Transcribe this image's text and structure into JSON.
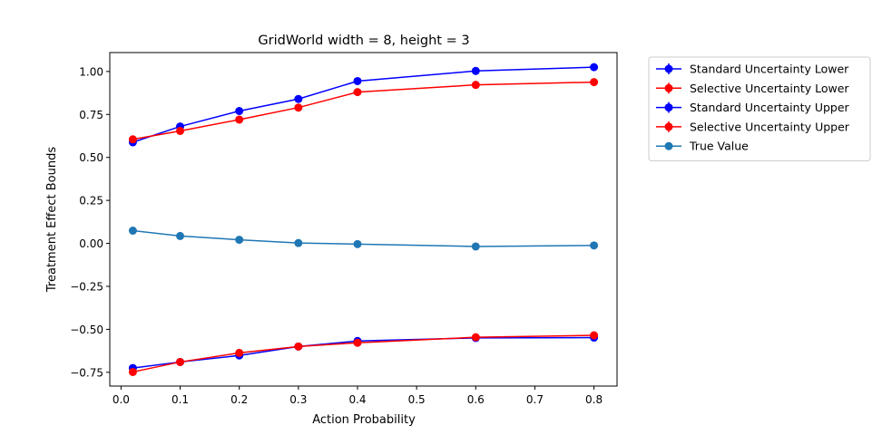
{
  "chart_data": {
    "type": "line",
    "title": "GridWorld width = 8, height = 3",
    "xlabel": "Action Probability",
    "ylabel": "Treatment Effect Bounds",
    "xlim": [
      -0.019,
      0.839
    ],
    "ylim": [
      -0.83,
      1.11
    ],
    "xticks": [
      0.0,
      0.1,
      0.2,
      0.3,
      0.4,
      0.5,
      0.6,
      0.7,
      0.8
    ],
    "xtick_labels": [
      "0.0",
      "0.1",
      "0.2",
      "0.3",
      "0.4",
      "0.5",
      "0.6",
      "0.7",
      "0.8"
    ],
    "yticks": [
      -0.75,
      -0.5,
      -0.25,
      0.0,
      0.25,
      0.5,
      0.75,
      1.0
    ],
    "ytick_labels": [
      "−0.75",
      "−0.50",
      "−0.25",
      "0.00",
      "0.25",
      "0.50",
      "0.75",
      "1.00"
    ],
    "x": [
      0.02,
      0.1,
      0.2,
      0.3,
      0.4,
      0.6,
      0.8
    ],
    "grid": false,
    "legend_position": "outside-right",
    "series": [
      {
        "name": "Standard Uncertainty Lower",
        "color": "#0000ff",
        "marker": "errorbar",
        "values": [
          -0.725,
          -0.69,
          -0.652,
          -0.6,
          -0.568,
          -0.55,
          -0.548
        ]
      },
      {
        "name": "Selective Uncertainty Lower",
        "color": "#ff0000",
        "marker": "errorbar",
        "values": [
          -0.748,
          -0.69,
          -0.637,
          -0.6,
          -0.578,
          -0.546,
          -0.535
        ]
      },
      {
        "name": "Standard Uncertainty Upper",
        "color": "#0000ff",
        "marker": "errorbar",
        "values": [
          0.588,
          0.68,
          0.77,
          0.84,
          0.944,
          1.003,
          1.025
        ]
      },
      {
        "name": "Selective Uncertainty Upper",
        "color": "#ff0000",
        "marker": "errorbar",
        "values": [
          0.605,
          0.654,
          0.72,
          0.79,
          0.88,
          0.922,
          0.938
        ]
      },
      {
        "name": "True Value",
        "color": "#1f77b4",
        "marker": "circle",
        "values": [
          0.074,
          0.043,
          0.021,
          0.002,
          -0.004,
          -0.018,
          -0.012
        ]
      }
    ]
  }
}
